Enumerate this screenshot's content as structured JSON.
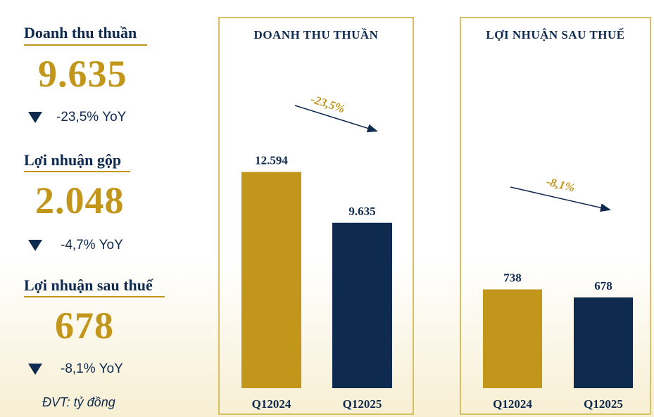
{
  "kpis": [
    {
      "title": "Doanh thu thuần",
      "value": "9.635",
      "change": "-23,5% YoY"
    },
    {
      "title": "Lợi nhuận gộp",
      "value": "2.048",
      "change": "-4,7% YoY"
    },
    {
      "title": "Lợi nhuận sau thuế",
      "value": "678",
      "change": "-8,1% YoY"
    }
  ],
  "unit_note": "ĐVT: tỷ đồng",
  "colors": {
    "gold": "#c2961a",
    "navy": "#0f2a4f",
    "border": "#d9bf63"
  },
  "chart_data": [
    {
      "type": "bar",
      "title": "DOANH THU THUẦN",
      "categories": [
        "Q12024",
        "Q12025"
      ],
      "values": [
        12594,
        9635
      ],
      "value_labels": [
        "12.594",
        "9.635"
      ],
      "annotation": "-23,5%",
      "ylim": [
        0,
        14500
      ],
      "grid": false
    },
    {
      "type": "bar",
      "title": "LỢI NHUẬN SAU THUẾ",
      "categories": [
        "Q12024",
        "Q12025"
      ],
      "values": [
        738,
        678
      ],
      "value_labels": [
        "738",
        "678"
      ],
      "annotation": "-8,1%",
      "ylim": [
        0,
        1860
      ],
      "grid": false
    }
  ]
}
